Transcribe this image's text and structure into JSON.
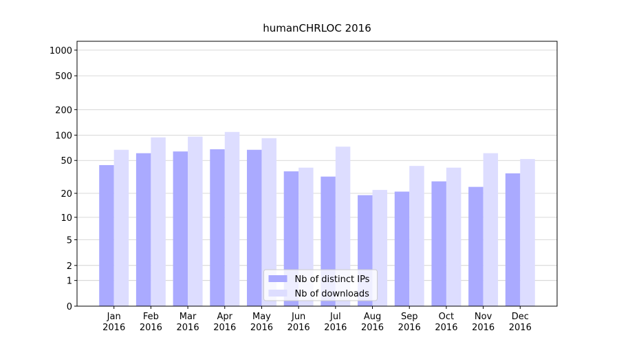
{
  "chart_data": {
    "type": "bar",
    "title": "humanCHRLOC 2016",
    "scale": "log1p",
    "categories": [
      "Jan 2016",
      "Feb 2016",
      "Mar 2016",
      "Apr 2016",
      "May 2016",
      "Jun 2016",
      "Jul 2016",
      "Aug 2016",
      "Sep 2016",
      "Oct 2016",
      "Nov 2016",
      "Dec 2016"
    ],
    "series": [
      {
        "name": "Nb of distinct IPs",
        "color": "#aaaaff",
        "values": [
          44,
          61,
          64,
          68,
          67,
          37,
          32,
          19,
          21,
          28,
          24,
          35
        ]
      },
      {
        "name": "Nb of downloads",
        "color": "#ddddff",
        "values": [
          67,
          94,
          96,
          109,
          92,
          41,
          73,
          22,
          43,
          41,
          61,
          52
        ]
      }
    ],
    "ylim": [
      0,
      1270
    ],
    "yticks": [
      0,
      1,
      2,
      5,
      10,
      20,
      50,
      100,
      200,
      500,
      1000
    ],
    "grid": true,
    "legend": "lower center"
  }
}
